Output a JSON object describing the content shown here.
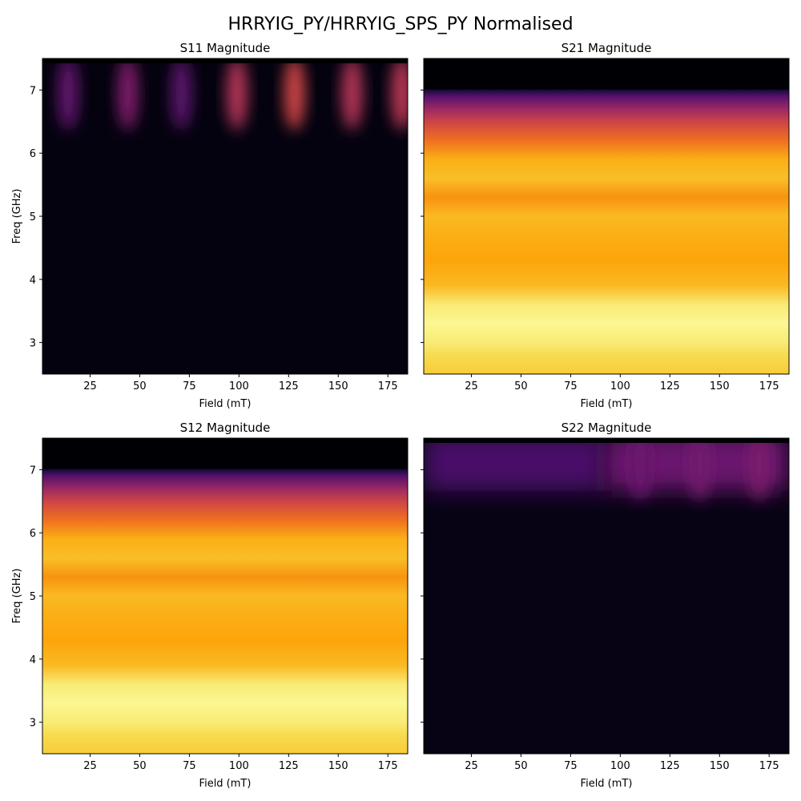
{
  "figure": {
    "title": "HRRYIG_PY/HRRYIG_SPS_PY Normalised"
  },
  "chart_data": [
    {
      "type": "heatmap",
      "title": "S11 Magnitude",
      "xlabel": "Field (mT)",
      "ylabel": "Freq (GHz)",
      "xlim": [
        1,
        185
      ],
      "ylim": [
        2.5,
        7.5
      ],
      "xticks": [
        25,
        50,
        75,
        100,
        125,
        150,
        175
      ],
      "yticks": [
        3,
        4,
        5,
        6,
        7
      ],
      "colormap": "inferno",
      "grid": false,
      "features": [
        {
          "kind": "band",
          "y_from": 2.5,
          "y_to": 7.5,
          "value": 0.02
        },
        {
          "kind": "spot",
          "x": 14,
          "y": 6.95,
          "value": 0.28
        },
        {
          "kind": "spot",
          "x": 44,
          "y": 6.95,
          "value": 0.35
        },
        {
          "kind": "spot",
          "x": 71,
          "y": 6.95,
          "value": 0.26
        },
        {
          "kind": "spot",
          "x": 99,
          "y": 6.95,
          "value": 0.48
        },
        {
          "kind": "spot",
          "x": 128,
          "y": 6.95,
          "value": 0.55
        },
        {
          "kind": "spot",
          "x": 157,
          "y": 6.95,
          "value": 0.48
        },
        {
          "kind": "spot",
          "x": 182,
          "y": 6.95,
          "value": 0.5
        }
      ]
    },
    {
      "type": "heatmap",
      "title": "S21 Magnitude",
      "xlabel": "Field (mT)",
      "ylabel": "",
      "xlim": [
        1,
        185
      ],
      "ylim": [
        2.5,
        7.5
      ],
      "xticks": [
        25,
        50,
        75,
        100,
        125,
        150,
        175
      ],
      "yticks": [
        3,
        4,
        5,
        6,
        7
      ],
      "colormap": "inferno",
      "grid": false,
      "freq_profile": [
        {
          "freq": 2.5,
          "value": 0.88
        },
        {
          "freq": 2.8,
          "value": 0.91
        },
        {
          "freq": 3.0,
          "value": 0.95
        },
        {
          "freq": 3.3,
          "value": 0.98
        },
        {
          "freq": 3.6,
          "value": 0.95
        },
        {
          "freq": 3.9,
          "value": 0.84
        },
        {
          "freq": 4.3,
          "value": 0.8
        },
        {
          "freq": 4.7,
          "value": 0.82
        },
        {
          "freq": 5.0,
          "value": 0.84
        },
        {
          "freq": 5.3,
          "value": 0.76
        },
        {
          "freq": 5.6,
          "value": 0.85
        },
        {
          "freq": 5.9,
          "value": 0.82
        },
        {
          "freq": 6.2,
          "value": 0.68
        },
        {
          "freq": 6.5,
          "value": 0.55
        },
        {
          "freq": 6.7,
          "value": 0.42
        },
        {
          "freq": 6.9,
          "value": 0.25
        },
        {
          "freq": 7.0,
          "value": 0.1
        },
        {
          "freq": 7.02,
          "value": 0.0
        },
        {
          "freq": 7.5,
          "value": 0.0
        }
      ]
    },
    {
      "type": "heatmap",
      "title": "S12 Magnitude",
      "xlabel": "Field (mT)",
      "ylabel": "Freq (GHz)",
      "xlim": [
        1,
        185
      ],
      "ylim": [
        2.5,
        7.5
      ],
      "xticks": [
        25,
        50,
        75,
        100,
        125,
        150,
        175
      ],
      "yticks": [
        3,
        4,
        5,
        6,
        7
      ],
      "colormap": "inferno",
      "grid": false,
      "freq_profile": [
        {
          "freq": 2.5,
          "value": 0.88
        },
        {
          "freq": 2.8,
          "value": 0.91
        },
        {
          "freq": 3.0,
          "value": 0.95
        },
        {
          "freq": 3.3,
          "value": 0.98
        },
        {
          "freq": 3.6,
          "value": 0.95
        },
        {
          "freq": 3.9,
          "value": 0.84
        },
        {
          "freq": 4.3,
          "value": 0.8
        },
        {
          "freq": 4.7,
          "value": 0.82
        },
        {
          "freq": 5.0,
          "value": 0.84
        },
        {
          "freq": 5.3,
          "value": 0.76
        },
        {
          "freq": 5.6,
          "value": 0.85
        },
        {
          "freq": 5.9,
          "value": 0.82
        },
        {
          "freq": 6.2,
          "value": 0.68
        },
        {
          "freq": 6.5,
          "value": 0.55
        },
        {
          "freq": 6.7,
          "value": 0.42
        },
        {
          "freq": 6.9,
          "value": 0.25
        },
        {
          "freq": 7.0,
          "value": 0.1
        },
        {
          "freq": 7.02,
          "value": 0.0
        },
        {
          "freq": 7.5,
          "value": 0.0
        }
      ]
    },
    {
      "type": "heatmap",
      "title": "S22 Magnitude",
      "xlabel": "Field (mT)",
      "ylabel": "",
      "xlim": [
        1,
        185
      ],
      "ylim": [
        2.5,
        7.5
      ],
      "xticks": [
        25,
        50,
        75,
        100,
        125,
        150,
        175
      ],
      "yticks": [
        3,
        4,
        5,
        6,
        7
      ],
      "colormap": "inferno",
      "grid": false,
      "features": [
        {
          "kind": "band",
          "y_from": 2.5,
          "y_to": 7.5,
          "value": 0.03
        },
        {
          "kind": "haze",
          "x_from": 1,
          "x_to": 92,
          "y": 7.05,
          "value": 0.22
        },
        {
          "kind": "haze",
          "x_from": 92,
          "x_to": 185,
          "y": 7.05,
          "value": 0.3
        },
        {
          "kind": "spot",
          "x": 110,
          "y": 7.1,
          "value": 0.3
        },
        {
          "kind": "spot",
          "x": 140,
          "y": 7.1,
          "value": 0.32
        },
        {
          "kind": "spot",
          "x": 170,
          "y": 7.1,
          "value": 0.34
        }
      ]
    }
  ]
}
